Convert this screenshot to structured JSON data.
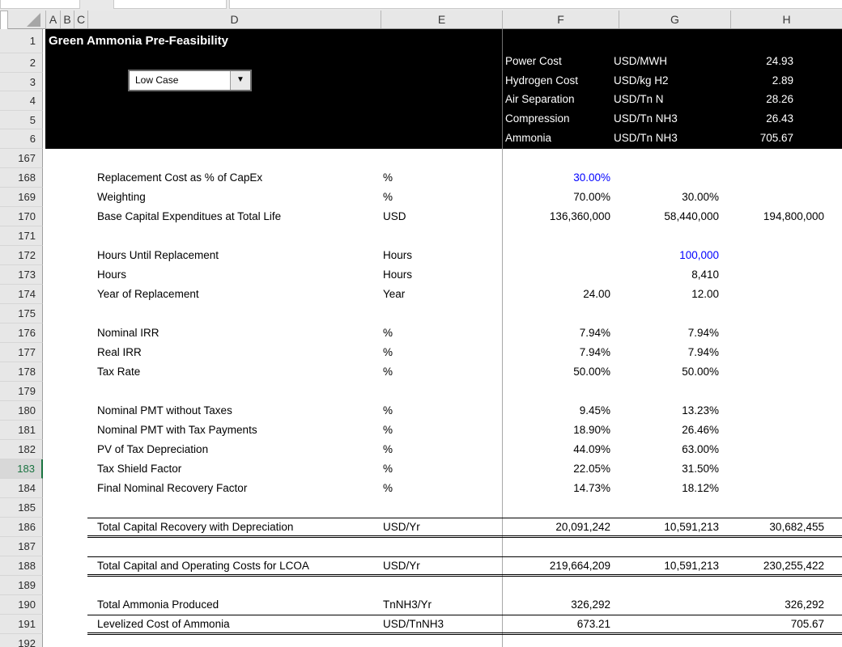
{
  "colors": {
    "input_blue": "#0000ff",
    "active_row_green": "#1a7340",
    "header_region_bg": "#000000"
  },
  "title": "Green Ammonia Pre-Feasibility",
  "case_selector": {
    "value": "Low Case"
  },
  "summary_table": {
    "rows": [
      {
        "label": "Power Cost",
        "unit": "USD/MWH",
        "value": "24.93"
      },
      {
        "label": "Hydrogen Cost",
        "unit": "USD/kg H2",
        "value": "2.89"
      },
      {
        "label": "Air Separation",
        "unit": "USD/Tn N",
        "value": "28.26"
      },
      {
        "label": "Compression",
        "unit": "USD/Tn NH3",
        "value": "26.43"
      },
      {
        "label": "Ammonia",
        "unit": "USD/Tn NH3",
        "value": "705.67"
      }
    ]
  },
  "sheet": {
    "column_headers": [
      "A",
      "B",
      "C",
      "D",
      "E",
      "F",
      "G",
      "H"
    ],
    "top_row_numbers": [
      "1",
      "2",
      "3",
      "4",
      "5",
      "6"
    ],
    "rows": [
      {
        "num": "167"
      },
      {
        "num": "168",
        "label": "Replacement Cost as % of CapEx",
        "unit": "%",
        "f": "30.00%",
        "f_blue": true
      },
      {
        "num": "169",
        "label": "Weighting",
        "unit": "%",
        "f": "70.00%",
        "g": "30.00%"
      },
      {
        "num": "170",
        "label": "Base Capital Expenditues at Total Life",
        "unit": "USD",
        "f": "136,360,000",
        "g": "58,440,000",
        "h": "194,800,000"
      },
      {
        "num": "171"
      },
      {
        "num": "172",
        "label": "Hours Until Replacement",
        "unit": "Hours",
        "g": "100,000",
        "g_blue": true
      },
      {
        "num": "173",
        "label": "Hours",
        "unit": "Hours",
        "g": "8,410"
      },
      {
        "num": "174",
        "label": "Year of Replacement",
        "unit": "Year",
        "f": "24.00",
        "g": "12.00"
      },
      {
        "num": "175"
      },
      {
        "num": "176",
        "label": "Nominal IRR",
        "unit": "%",
        "f": "7.94%",
        "g": "7.94%"
      },
      {
        "num": "177",
        "label": "Real IRR",
        "unit": "%",
        "f": "7.94%",
        "g": "7.94%"
      },
      {
        "num": "178",
        "label": "Tax Rate",
        "unit": "%",
        "f": "50.00%",
        "g": "50.00%"
      },
      {
        "num": "179"
      },
      {
        "num": "180",
        "label": "Nominal PMT without Taxes",
        "unit": "%",
        "f": "9.45%",
        "g": "13.23%"
      },
      {
        "num": "181",
        "label": "Nominal PMT with Tax Payments",
        "unit": "%",
        "f": "18.90%",
        "g": "26.46%"
      },
      {
        "num": "182",
        "label": "PV of Tax Depreciation",
        "unit": "%",
        "f": "44.09%",
        "g": "63.00%"
      },
      {
        "num": "183",
        "label": "Tax Shield Factor",
        "unit": "%",
        "f": "22.05%",
        "g": "31.50%",
        "active": true
      },
      {
        "num": "184",
        "label": "Final Nominal Recovery Factor",
        "unit": "%",
        "f": "14.73%",
        "g": "18.12%"
      },
      {
        "num": "185"
      },
      {
        "num": "186",
        "label": "Total Capital Recovery with Depreciation",
        "unit": "USD/Yr",
        "f": "20,091,242",
        "g": "10,591,213",
        "h": "30,682,455",
        "box": "total"
      },
      {
        "num": "187"
      },
      {
        "num": "188",
        "label": "Total Capital and Operating Costs for LCOA",
        "unit": "USD/Yr",
        "f": "219,664,209",
        "g": "10,591,213",
        "h": "230,255,422",
        "box": "total"
      },
      {
        "num": "189"
      },
      {
        "num": "190",
        "label": "Total Ammonia Produced",
        "unit": "TnNH3/Yr",
        "f": "326,292",
        "h": "326,292",
        "box": "under"
      },
      {
        "num": "191",
        "label": "Levelized Cost of Ammonia",
        "unit": "USD/TnNH3",
        "f": "673.21",
        "h": "705.67",
        "box": "final"
      },
      {
        "num": "192"
      }
    ]
  }
}
